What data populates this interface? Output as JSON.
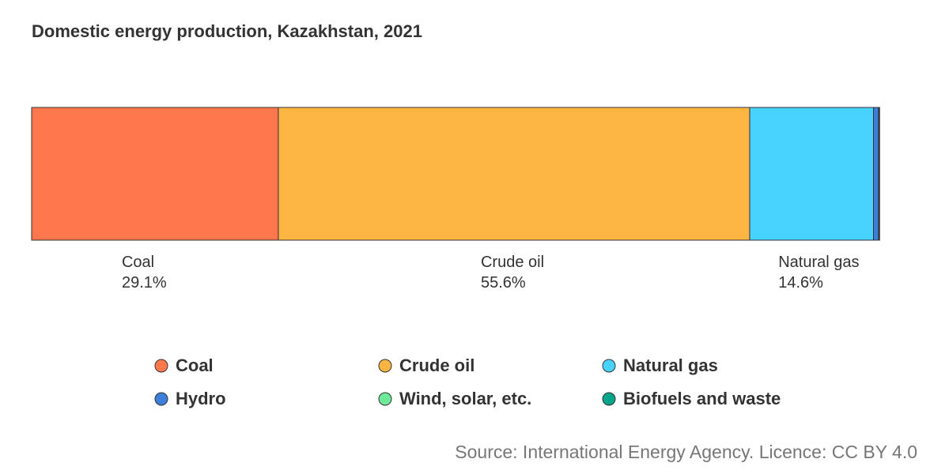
{
  "source": "Source: International Energy Agency. Licence: CC BY 4.0",
  "chart_data": {
    "type": "bar",
    "orientation": "horizontal-stacked",
    "title": "Domestic energy production, Kazakhstan, 2021",
    "unit": "%",
    "series": [
      {
        "name": "Coal",
        "value": 29.1,
        "color": "#FF774D",
        "label": "Coal",
        "value_label": "29.1%"
      },
      {
        "name": "Crude oil",
        "value": 55.6,
        "color": "#FDB643",
        "label": "Crude oil",
        "value_label": "55.6%"
      },
      {
        "name": "Natural gas",
        "value": 14.6,
        "color": "#48D3FF",
        "label": "Natural gas",
        "value_label": "14.6%"
      },
      {
        "name": "Hydro",
        "value": 0.6,
        "color": "#3D7FD8"
      },
      {
        "name": "Wind, solar, etc.",
        "value": 0.05,
        "color": "#6EE998"
      },
      {
        "name": "Biofuels and waste",
        "value": 0.05,
        "color": "#00A58A"
      }
    ],
    "legend": {
      "placement": "bottom",
      "items": [
        "Coal",
        "Crude oil",
        "Natural gas",
        "Hydro",
        "Wind, solar, etc.",
        "Biofuels and waste"
      ]
    }
  }
}
